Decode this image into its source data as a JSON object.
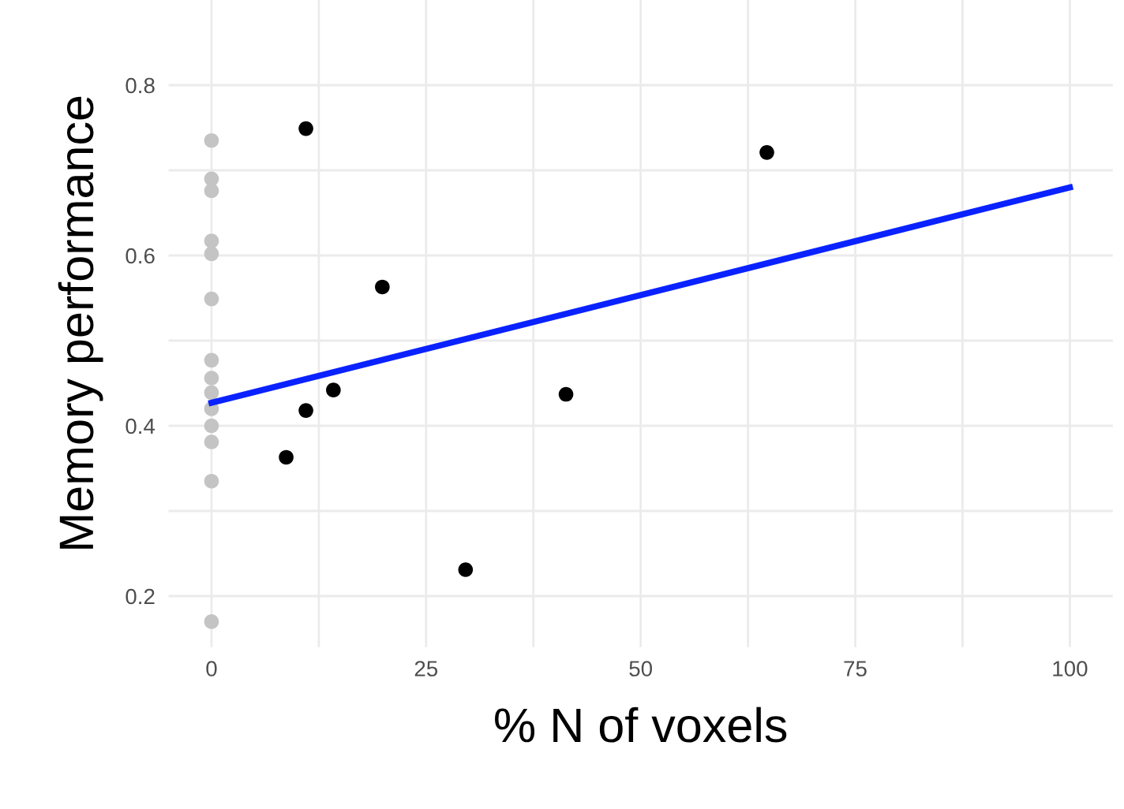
{
  "chart_data": {
    "type": "scatter",
    "xlabel": "% N of voxels",
    "ylabel": "Memory performance",
    "xlim": [
      -5,
      105
    ],
    "ylim": [
      0.14,
      0.9
    ],
    "xticks": [
      0,
      {
        "value": 12.5,
        "label": null
      },
      25,
      {
        "value": 37.5,
        "label": null
      },
      50,
      {
        "value": 62.5,
        "label": null
      },
      75,
      {
        "value": 87.5,
        "label": null
      },
      100
    ],
    "yticks": [
      0.2,
      {
        "value": 0.3,
        "label": null
      },
      0.4,
      {
        "value": 0.5,
        "label": null
      },
      0.6,
      {
        "value": 0.7,
        "label": null
      },
      0.8
    ],
    "grid": true,
    "marker": "circle",
    "series": [
      {
        "color": "#c4c4c4",
        "x": [
          0,
          0,
          0,
          0,
          0,
          0,
          0,
          0,
          0,
          0,
          0,
          0,
          0,
          0
        ],
        "values": [
          0.735,
          0.69,
          0.676,
          0.617,
          0.602,
          0.549,
          0.477,
          0.456,
          0.439,
          0.42,
          0.4,
          0.381,
          0.335,
          0.17
        ]
      },
      {
        "color": "#000000",
        "x": [
          11.0,
          64.7,
          19.9,
          14.2,
          11.0,
          41.3,
          8.7,
          29.6
        ],
        "values": [
          0.749,
          0.721,
          0.563,
          0.442,
          0.418,
          0.437,
          0.363,
          0.231
        ]
      },
      {
        "type": "line",
        "marker": "none",
        "color": "#0a22ff",
        "x": [
          0,
          100
        ],
        "values": [
          0.427,
          0.68
        ]
      }
    ]
  }
}
